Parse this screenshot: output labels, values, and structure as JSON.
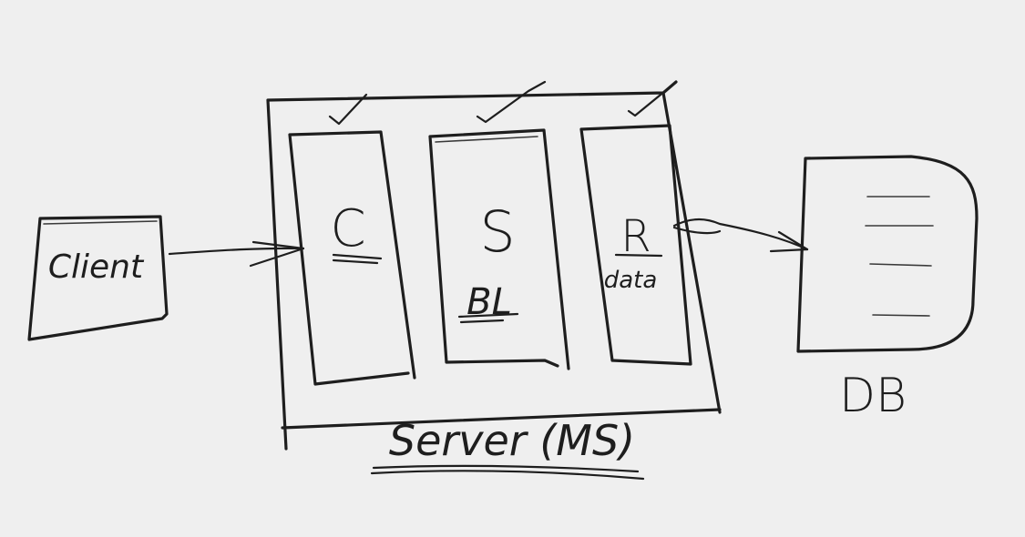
{
  "diagram": {
    "client": {
      "label": "Client"
    },
    "server": {
      "label": "Server (MS)",
      "layers": [
        {
          "label": "C",
          "sublabel": ""
        },
        {
          "label": "S",
          "sublabel": "BL"
        },
        {
          "label": "R",
          "sublabel": "data"
        }
      ]
    },
    "database": {
      "label": "DB"
    },
    "connections": [
      {
        "from": "client",
        "to": "controller-layer"
      },
      {
        "from": "repository-layer",
        "to": "database"
      }
    ]
  }
}
